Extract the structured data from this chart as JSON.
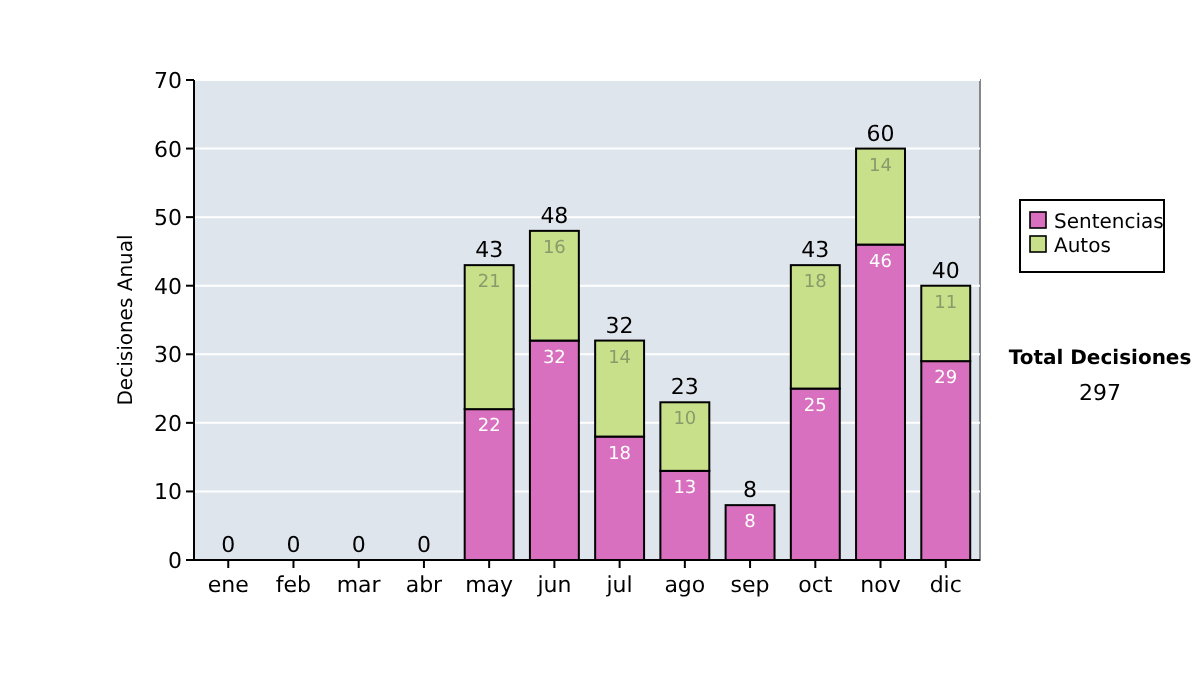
{
  "chart_data": {
    "type": "bar",
    "stacked": true,
    "ylabel": "Decisiones Anual",
    "categories": [
      "ene",
      "feb",
      "mar",
      "abr",
      "may",
      "jun",
      "jul",
      "ago",
      "sep",
      "oct",
      "nov",
      "dic"
    ],
    "series": [
      {
        "name": "Sentencias",
        "color": "#d96fbf",
        "values": [
          0,
          0,
          0,
          0,
          22,
          32,
          18,
          13,
          8,
          25,
          46,
          29
        ],
        "value_labels": [
          null,
          null,
          null,
          null,
          "22",
          "32",
          "18",
          "13",
          "8",
          "25",
          "46",
          "29"
        ]
      },
      {
        "name": "Autos",
        "color": "#c8e08a",
        "values": [
          0,
          0,
          0,
          0,
          21,
          16,
          14,
          10,
          0,
          18,
          14,
          11
        ],
        "value_labels": [
          null,
          null,
          null,
          null,
          "21",
          "16",
          "14",
          "10",
          null,
          "18",
          "14",
          "11"
        ]
      }
    ],
    "totals": [
      "0",
      "0",
      "0",
      "0",
      "43",
      "48",
      "32",
      "23",
      "8",
      "43",
      "60",
      "40"
    ],
    "ylim": [
      0,
      70
    ],
    "yticks": [
      0,
      10,
      20,
      30,
      40,
      50,
      60,
      70
    ],
    "grid": "y",
    "legend": "right",
    "annotations": [
      "Total Decisiones",
      "297"
    ]
  }
}
